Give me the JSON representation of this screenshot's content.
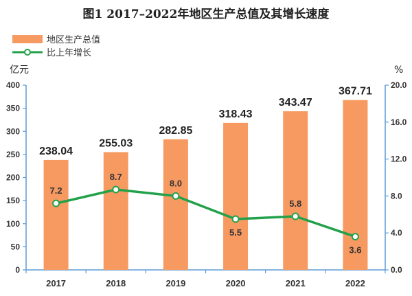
{
  "chart_data": {
    "type": "bar",
    "title": "图1 2017–2022年地区生产总值及其增长速度",
    "categories": [
      "2017",
      "2018",
      "2019",
      "2020",
      "2021",
      "2022"
    ],
    "series": [
      {
        "name": "地区生产总值",
        "type": "bar",
        "axis": "left",
        "values": [
          238.04,
          255.03,
          282.85,
          318.43,
          343.47,
          367.71
        ],
        "labels": [
          "238.04",
          "255.03",
          "282.85",
          "318.43",
          "343.47",
          "367.71"
        ]
      },
      {
        "name": "比上年增长",
        "type": "line",
        "axis": "right",
        "values": [
          7.2,
          8.7,
          8.0,
          5.5,
          5.8,
          3.6
        ],
        "labels": [
          "7.2",
          "8.7",
          "8.0",
          "5.5",
          "5.8",
          "3.6"
        ]
      }
    ],
    "ylabel_left": "亿元",
    "ylabel_right": "%",
    "ylim_left": [
      0,
      400
    ],
    "ylim_right": [
      0,
      20
    ],
    "yticks_left": [
      "0",
      "50",
      "100",
      "150",
      "200",
      "250",
      "300",
      "350",
      "400"
    ],
    "yticks_right": [
      "0.0",
      "4.0",
      "8.0",
      "12.0",
      "16.0",
      "20.0"
    ],
    "grid": false,
    "legend_position": "top-left",
    "colors": {
      "bar": "#F79A62",
      "line": "#22A14A",
      "marker_fill": "#ffffff",
      "axis": "#5B9BD5"
    }
  }
}
